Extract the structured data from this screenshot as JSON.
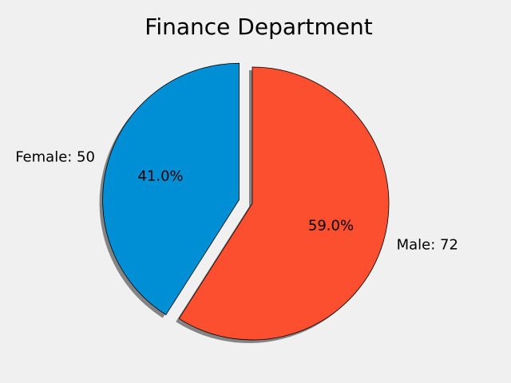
{
  "chart_data": {
    "type": "pie",
    "title": "Finance Department",
    "slices": [
      {
        "label": "Female",
        "value": 50,
        "slice_label": "Female: 50",
        "percent_label": "41.0%",
        "color": "#008fd5",
        "exploded": true
      },
      {
        "label": "Male",
        "value": 72,
        "slice_label": "Male: 72",
        "percent_label": "59.0%",
        "color": "#fc4f30",
        "exploded": false
      }
    ],
    "shadow": true,
    "edge_color": "#000000",
    "background_color": "#f0f0f0"
  }
}
